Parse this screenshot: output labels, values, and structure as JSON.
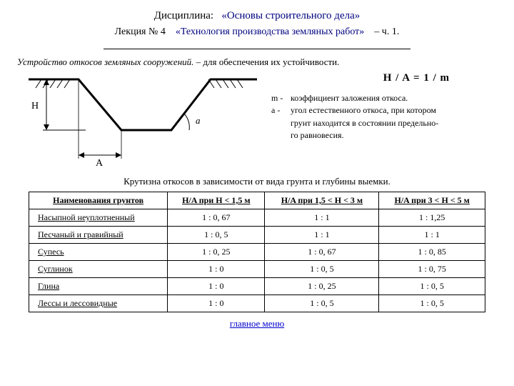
{
  "header": {
    "discipline_label": "Дисциплина:",
    "discipline_value": "«Основы строительного дела»",
    "lecture_label": "Лекция № 4",
    "lecture_title": "«Технология производства земляных работ»",
    "lecture_part": "– ч. 1."
  },
  "subtitle": {
    "italic": "Устройство откосов земляных сооружений.",
    "rest": " – для обеспечения их устойчивости."
  },
  "formula": "H / A  =  1 / m",
  "legend": {
    "m_sym": "m -",
    "m_text": "коэффициент заложения откоса.",
    "a_sym": "a  -",
    "a_line1": "угол естественного откоса, при котором",
    "a_line2": "грунт находится в состоянии предельно-",
    "a_line3": "го равновесия."
  },
  "labels": {
    "H": "H",
    "A": "A",
    "a": "a"
  },
  "caption": "Крутизна откосов в зависимости от вида грунта и глубины выемки.",
  "table": {
    "headers": [
      "Наименования  грунтов",
      "H/A  при  H < 1,5 м",
      "H/A при  1,5 < H < 3 м",
      "H/A при  3 < H < 5 м"
    ],
    "rows": [
      [
        "Насыпной  неуплотненный",
        "1 : 0, 67",
        "1  :  1",
        "1  :  1,25"
      ],
      [
        "Песчаный  и  гравийный",
        "1 : 0, 5",
        "1  :  1",
        "1  :  1"
      ],
      [
        "Супесь",
        "1 : 0, 25",
        "1  :  0, 67",
        "1  :  0, 85"
      ],
      [
        "Суглинок",
        "1 :  0",
        "1  :  0, 5",
        "1  :  0, 75"
      ],
      [
        "Глина",
        "1 :  0",
        "1  :  0, 25",
        "1  :  0, 5"
      ],
      [
        "Лессы  и лессовидные",
        "1 :  0",
        "1  :  0, 5",
        "1  :  0, 5"
      ]
    ]
  },
  "menu_link": "главное меню",
  "colors": {
    "text": "#000000",
    "accent": "#000080",
    "link": "#0000cc",
    "background": "#ffffff"
  }
}
